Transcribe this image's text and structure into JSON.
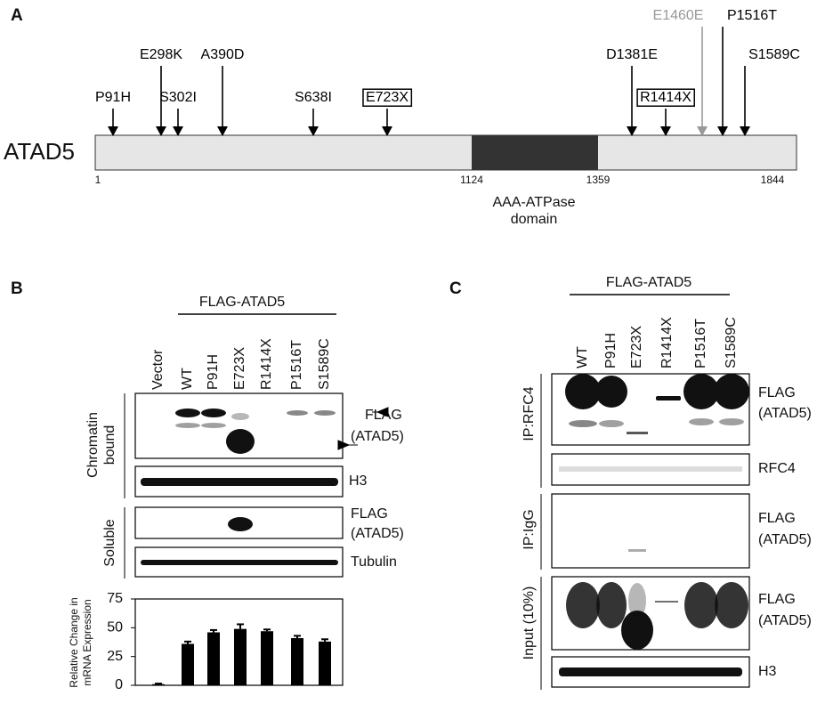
{
  "panel_a": {
    "label": "A",
    "protein": "ATAD5",
    "positions": [
      "1",
      "1124",
      "1359",
      "1844"
    ],
    "domain": [
      "AAA-ATPase",
      "domain"
    ],
    "mutations": [
      "P91H",
      "E298K",
      "S302I",
      "A390D",
      "S638I",
      "E723X",
      "D1381E",
      "R1414X",
      "E1460E",
      "P1516T",
      "S1589C"
    ]
  },
  "panel_b": {
    "label": "B",
    "header": "FLAG-ATAD5",
    "lanes": [
      "Vector",
      "WT",
      "P91H",
      "E723X",
      "R1414X",
      "P1516T",
      "S1589C"
    ],
    "chromatin_label": [
      "Chromatin",
      "bound"
    ],
    "soluble_label": "Soluble",
    "blots": [
      [
        "FLAG",
        "(ATAD5)"
      ],
      "H3",
      [
        "FLAG",
        "(ATAD5)"
      ],
      "Tubulin"
    ],
    "chart": {
      "type": "bar",
      "ylabel": [
        "Relative Change in",
        "mRNA Expression"
      ],
      "ylim": [
        0,
        75
      ],
      "yticks": [
        0,
        25,
        50,
        75
      ],
      "values": [
        1,
        36,
        46,
        49,
        47,
        41,
        38
      ],
      "errors": [
        0.5,
        2,
        2,
        4,
        1.5,
        2,
        2
      ],
      "color": "#000000"
    }
  },
  "panel_c": {
    "label": "C",
    "header": "FLAG-ATAD5",
    "lanes": [
      "WT",
      "P91H",
      "E723X",
      "R1414X",
      "P1516T",
      "S1589C"
    ],
    "side_labels": [
      "IP:RFC4",
      "IP:IgG",
      "Input (10%)"
    ],
    "blots": [
      [
        "FLAG",
        "(ATAD5)"
      ],
      "RFC4",
      [
        "FLAG",
        "(ATAD5)"
      ],
      [
        "FLAG",
        "(ATAD5)"
      ],
      "H3"
    ]
  }
}
